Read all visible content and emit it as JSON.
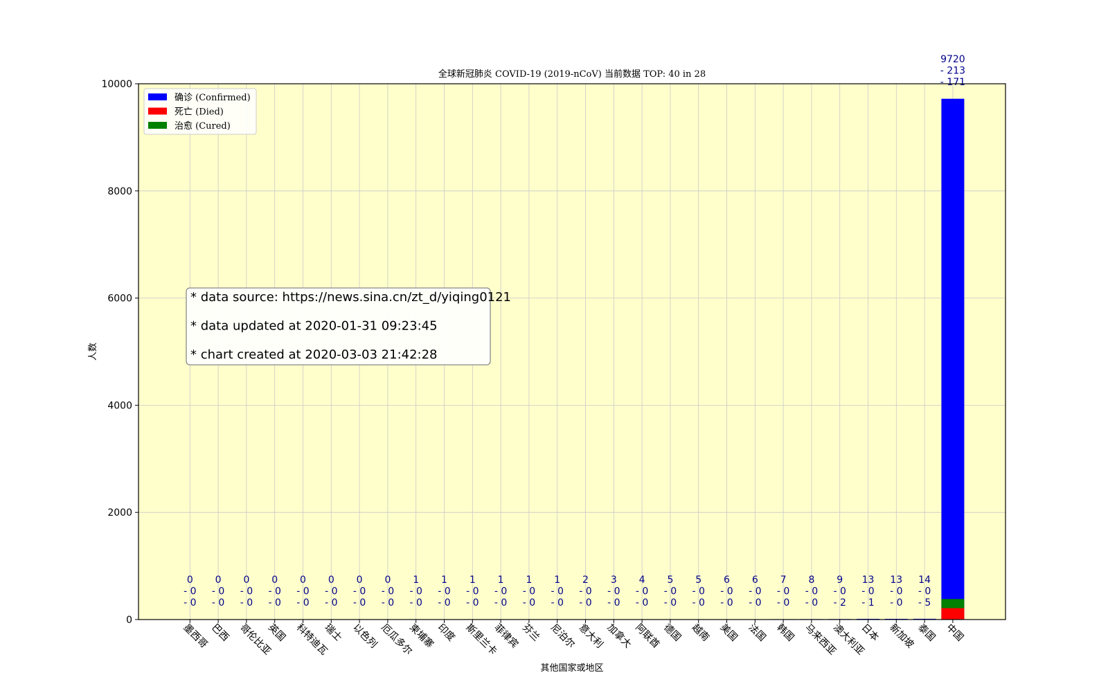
{
  "chart_data": {
    "type": "bar",
    "title": "全球新冠肺炎 COVID-19 (2019-nCoV) 当前数据 TOP: 40 in 28",
    "xlabel": "其他国家或地区",
    "ylabel": "人数",
    "ylim": [
      0,
      10000
    ],
    "yticks": [
      "0",
      "2000",
      "4000",
      "6000",
      "8000",
      "10000"
    ],
    "grid": true,
    "legend_position": "top-left",
    "background": "#ffffcc",
    "categories": [
      "墨西哥",
      "巴西",
      "哥伦比亚",
      "英国",
      "科特迪瓦",
      "瑞士",
      "以色列",
      "厄瓜多尔",
      "柬埔寨",
      "印度",
      "斯里兰卡",
      "菲律宾",
      "芬兰",
      "尼泊尔",
      "意大利",
      "加拿大",
      "阿联酋",
      "德国",
      "越南",
      "美国",
      "法国",
      "韩国",
      "马来西亚",
      "澳大利亚",
      "日本",
      "新加坡",
      "泰国",
      "中国"
    ],
    "series": [
      {
        "name": "确诊 (Confirmed)",
        "color": "#0000ff",
        "values": [
          0,
          0,
          0,
          0,
          0,
          0,
          0,
          0,
          1,
          1,
          1,
          1,
          1,
          1,
          2,
          3,
          4,
          5,
          5,
          6,
          6,
          7,
          8,
          9,
          13,
          13,
          14,
          9720
        ]
      },
      {
        "name": "死亡 (Died)",
        "color": "#ff0000",
        "values": [
          0,
          0,
          0,
          0,
          0,
          0,
          0,
          0,
          0,
          0,
          0,
          0,
          0,
          0,
          0,
          0,
          0,
          0,
          0,
          0,
          0,
          0,
          0,
          0,
          0,
          0,
          0,
          213
        ]
      },
      {
        "name": "治愈 (Cured)",
        "color": "#008000",
        "values": [
          0,
          0,
          0,
          0,
          0,
          0,
          0,
          0,
          0,
          0,
          0,
          0,
          0,
          0,
          0,
          0,
          0,
          0,
          0,
          0,
          0,
          0,
          0,
          2,
          1,
          0,
          5,
          171
        ]
      }
    ],
    "info_box": [
      "* data source: https://news.sina.cn/zt_d/yiqing0121",
      "* data updated at 2020-01-31 09:23:45",
      "* chart created at 2020-03-03 21:42:28"
    ]
  }
}
